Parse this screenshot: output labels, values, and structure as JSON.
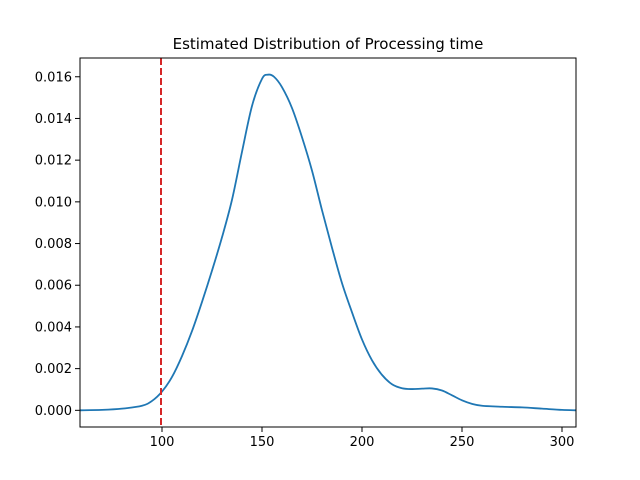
{
  "chart_data": {
    "type": "line",
    "title": "Estimated Distribution of Processing time",
    "xlabel": "",
    "ylabel": "",
    "xlim": [
      59,
      307
    ],
    "ylim": [
      -0.0008,
      0.0169
    ],
    "xticks": [
      100,
      150,
      200,
      250,
      300
    ],
    "yticks": [
      0.0,
      0.002,
      0.004,
      0.006,
      0.008,
      0.01,
      0.012,
      0.014,
      0.016
    ],
    "ytick_labels": [
      "0.000",
      "0.002",
      "0.004",
      "0.006",
      "0.008",
      "0.010",
      "0.012",
      "0.014",
      "0.016"
    ],
    "xtick_labels": [
      "100",
      "150",
      "200",
      "250",
      "300"
    ],
    "grid": false,
    "series": [
      {
        "color": "#1f77b4",
        "x": [
          59,
          70,
          80,
          90,
          95,
          100,
          105,
          110,
          115,
          120,
          125,
          130,
          135,
          140,
          145,
          150,
          153,
          156,
          160,
          165,
          170,
          175,
          180,
          185,
          190,
          195,
          200,
          205,
          210,
          215,
          220,
          225,
          230,
          235,
          240,
          245,
          250,
          255,
          260,
          270,
          280,
          290,
          300,
          307
        ],
        "y": [
          0.0,
          2e-05,
          8e-05,
          0.00022,
          0.00045,
          0.0009,
          0.0016,
          0.0026,
          0.0038,
          0.0052,
          0.0067,
          0.0083,
          0.0101,
          0.0124,
          0.0146,
          0.0159,
          0.0161,
          0.016,
          0.0155,
          0.0145,
          0.0131,
          0.0115,
          0.0096,
          0.0078,
          0.0061,
          0.0047,
          0.0034,
          0.0024,
          0.0017,
          0.00125,
          0.00106,
          0.00102,
          0.00104,
          0.00105,
          0.00095,
          0.00072,
          0.00048,
          0.00031,
          0.00022,
          0.00017,
          0.00014,
          8e-05,
          2e-05,
          0.0
        ]
      }
    ],
    "annotations": [
      {
        "type": "vline",
        "x": 99.5,
        "color": "#d62728",
        "style": "dashed"
      }
    ]
  }
}
